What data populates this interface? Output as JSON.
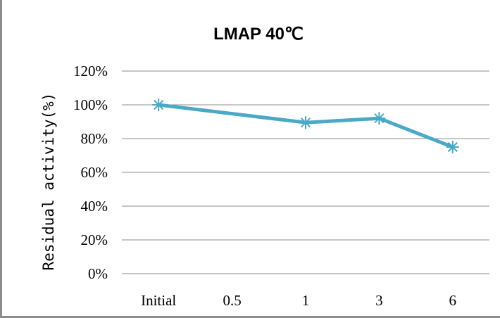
{
  "chart_data": {
    "type": "line",
    "title": "LMAP 40℃",
    "ylabel": "Residual activity(%)",
    "xlabel": "",
    "categories": [
      "Initial",
      "0.5",
      "1",
      "3",
      "6"
    ],
    "y_ticks": [
      "0%",
      "20%",
      "40%",
      "60%",
      "80%",
      "100%",
      "120%"
    ],
    "ylim": [
      0,
      120
    ],
    "grid": true,
    "legend": "none",
    "series": [
      {
        "points": [
          {
            "x": "Initial",
            "y": 100
          },
          {
            "x": "1",
            "y": 89.5
          },
          {
            "x": "3",
            "y": 92
          },
          {
            "x": "6",
            "y": 75
          }
        ]
      }
    ],
    "colors": {
      "series": "#4ba9c8",
      "grid": "#8c8c8c"
    }
  }
}
